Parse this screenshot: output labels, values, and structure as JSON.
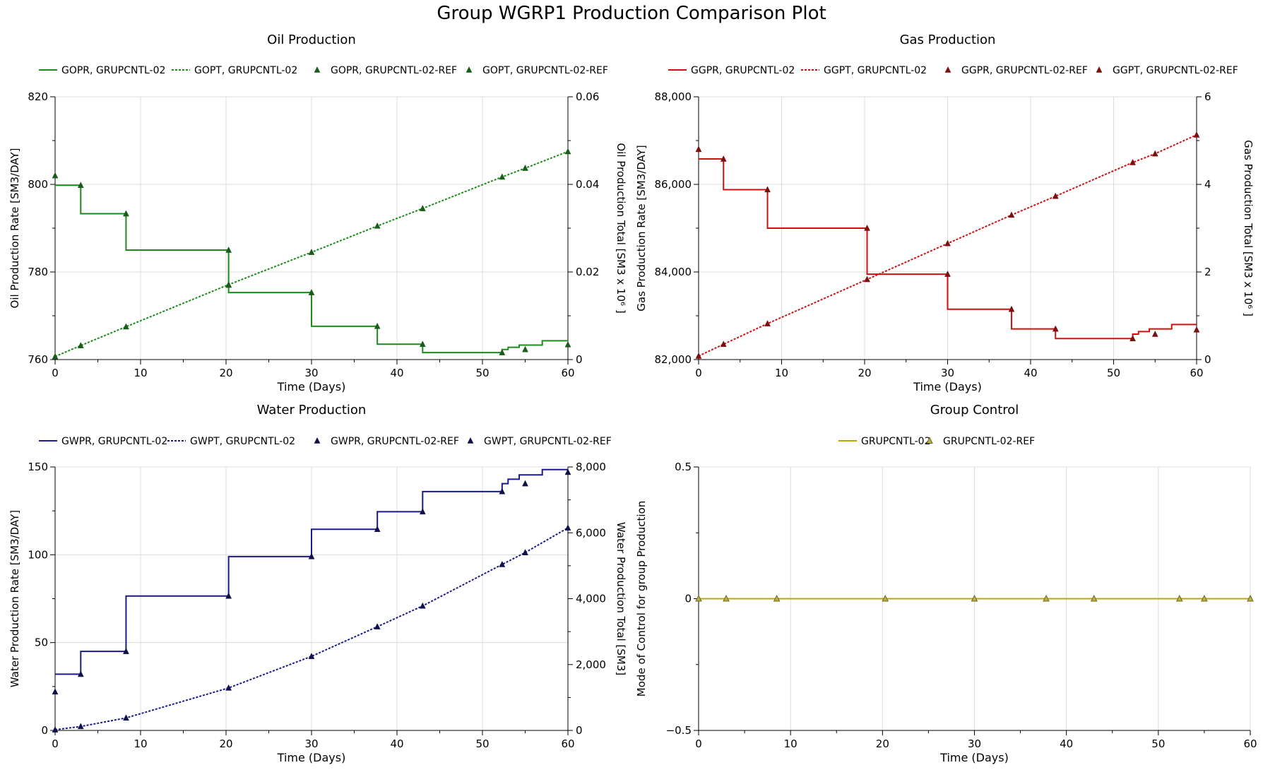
{
  "figure": {
    "title": "Group WGRP1 Production Comparison Plot"
  },
  "chart_data": [
    {
      "id": "oil",
      "type": "line",
      "title": "Oil Production",
      "xlabel": "Time (Days)",
      "ylabel": "Oil Production Rate [SM3/DAY]",
      "y2label": "Oil Production Total [SM3 x 10⁶ ]",
      "xlim": [
        0,
        60
      ],
      "ylim": [
        760,
        820
      ],
      "y2lim": [
        0,
        0.06
      ],
      "xticks": [
        "0",
        "10",
        "20",
        "30",
        "40",
        "50",
        "60"
      ],
      "yticks": [
        "760",
        "780",
        "800",
        "820"
      ],
      "y2ticks": [
        "0",
        "0.02",
        "0.04",
        "0.06"
      ],
      "color": "#1a8c1a",
      "marker_color": "#1a5c1a",
      "legend": [
        "GOPR, GRUPCNTL-02",
        "GOPT, GRUPCNTL-02",
        "GOPR, GRUPCNTL-02-REF",
        "GOPT, GRUPCNTL-02-REF"
      ],
      "rate_step": {
        "x": [
          0,
          3,
          8.3,
          20.3,
          30,
          37.7,
          43,
          52.3,
          53,
          54.3,
          57,
          60
        ],
        "y": [
          799.8,
          793.3,
          785,
          775.3,
          767.6,
          763.5,
          761.6,
          762.3,
          762.8,
          763.3,
          764.3,
          764.3
        ]
      },
      "rate_ref": {
        "x": [
          0,
          3,
          8.3,
          20.3,
          20.3,
          30,
          37.7,
          43,
          52.3,
          55,
          60
        ],
        "y": [
          802,
          799.8,
          793.3,
          785,
          777,
          775.3,
          767.6,
          763.5,
          761.6,
          762.3,
          763.4
        ]
      },
      "total": {
        "x": [
          0,
          3,
          8.3,
          20.3,
          30,
          37.7,
          43,
          52.3,
          55,
          60
        ],
        "y": [
          0.0007,
          0.0032,
          0.0075,
          0.0171,
          0.0245,
          0.0305,
          0.0345,
          0.0417,
          0.0437,
          0.0475
        ]
      }
    },
    {
      "id": "gas",
      "type": "line",
      "title": "Gas Production",
      "xlabel": "Time (Days)",
      "ylabel": "Gas Production Rate [SM3/DAY]",
      "y2label": "Gas Production Total [SM3 x 10⁶ ]",
      "xlim": [
        0,
        60
      ],
      "ylim": [
        82000,
        88000
      ],
      "y2lim": [
        0,
        6
      ],
      "xticks": [
        "0",
        "10",
        "20",
        "30",
        "40",
        "50",
        "60"
      ],
      "yticks": [
        "82,000",
        "84,000",
        "86,000",
        "88,000"
      ],
      "y2ticks": [
        "0",
        "2",
        "4",
        "6"
      ],
      "color": "#cc1111",
      "marker_color": "#7a1010",
      "legend": [
        "GGPR, GRUPCNTL-02",
        "GGPT, GRUPCNTL-02",
        "GGPR, GRUPCNTL-02-REF",
        "GGPT, GRUPCNTL-02-REF"
      ],
      "rate_step": {
        "x": [
          0,
          3,
          8.3,
          20.3,
          30,
          37.7,
          43,
          52.3,
          53,
          54.3,
          57,
          60
        ],
        "y": [
          86580,
          85880,
          85000,
          83950,
          83150,
          82700,
          82480,
          82580,
          82640,
          82700,
          82800,
          82800
        ]
      },
      "rate_ref": {
        "x": [
          0,
          3,
          8.3,
          20.3,
          30,
          37.7,
          43,
          52.3,
          55,
          60
        ],
        "y": [
          86800,
          86580,
          85880,
          85000,
          83950,
          83150,
          82700,
          82480,
          82580,
          82680
        ]
      },
      "total": {
        "x": [
          0,
          3,
          8.3,
          20.3,
          30,
          37.7,
          43,
          52.3,
          55,
          60
        ],
        "y": [
          0.08,
          0.35,
          0.82,
          1.83,
          2.65,
          3.3,
          3.73,
          4.5,
          4.7,
          5.13
        ]
      }
    },
    {
      "id": "water",
      "type": "line",
      "title": "Water Production",
      "xlabel": "Time (Days)",
      "ylabel": "Water Production Rate [SM3/DAY]",
      "y2label": "Water Production Total [SM3]",
      "xlim": [
        0,
        60
      ],
      "ylim": [
        0,
        150
      ],
      "y2lim": [
        0,
        8000
      ],
      "xticks": [
        "0",
        "10",
        "20",
        "30",
        "40",
        "50",
        "60"
      ],
      "yticks": [
        "0",
        "50",
        "100",
        "150"
      ],
      "y2ticks": [
        "0",
        "2,000",
        "4,000",
        "6,000",
        "8,000"
      ],
      "color": "#1a1a8c",
      "marker_color": "#10104a",
      "legend": [
        "GWPR, GRUPCNTL-02",
        "GWPT, GRUPCNTL-02",
        "GWPR, GRUPCNTL-02-REF",
        "GWPT, GRUPCNTL-02-REF"
      ],
      "rate_step": {
        "x": [
          0,
          3,
          8.3,
          20.3,
          30,
          37.7,
          43,
          52.3,
          53,
          54.3,
          57,
          60
        ],
        "y": [
          32,
          45,
          76.5,
          99,
          114.5,
          124.5,
          136,
          140.5,
          143,
          145.5,
          148.5,
          148.5
        ]
      },
      "rate_ref": {
        "x": [
          0,
          3,
          8.3,
          20.3,
          30,
          37.7,
          43,
          52.3,
          55,
          60
        ],
        "y": [
          22,
          32,
          45,
          76.5,
          99,
          114.5,
          124.5,
          136,
          140.5,
          147
        ]
      },
      "total": {
        "x": [
          0,
          3,
          8.3,
          20.3,
          30,
          37.7,
          43,
          52.3,
          55,
          60
        ],
        "y": [
          20,
          120,
          380,
          1290,
          2250,
          3150,
          3780,
          5040,
          5400,
          6150
        ]
      }
    },
    {
      "id": "control",
      "type": "line",
      "title": "Group Control",
      "xlabel": "Time (Days)",
      "ylabel": "Mode of Control for group Production",
      "xlim": [
        0,
        60
      ],
      "ylim": [
        -0.5,
        0.5
      ],
      "xticks": [
        "0",
        "10",
        "20",
        "30",
        "40",
        "50",
        "60"
      ],
      "yticks": [
        "−0.5",
        "0",
        "0.5"
      ],
      "color": "#b8a800",
      "marker_color": "#6b6b10",
      "marker_fill": "#b8b050",
      "legend": [
        "GRUPCNTL-02",
        "GRUPCNTL-02-REF"
      ],
      "line": {
        "x": [
          0,
          60
        ],
        "y": [
          0,
          0
        ]
      },
      "ref": {
        "x": [
          0,
          3,
          8.5,
          20.3,
          30,
          37.8,
          43,
          52.3,
          55,
          60
        ],
        "y": [
          0,
          0,
          0,
          0,
          0,
          0,
          0,
          0,
          0,
          0
        ]
      }
    }
  ]
}
